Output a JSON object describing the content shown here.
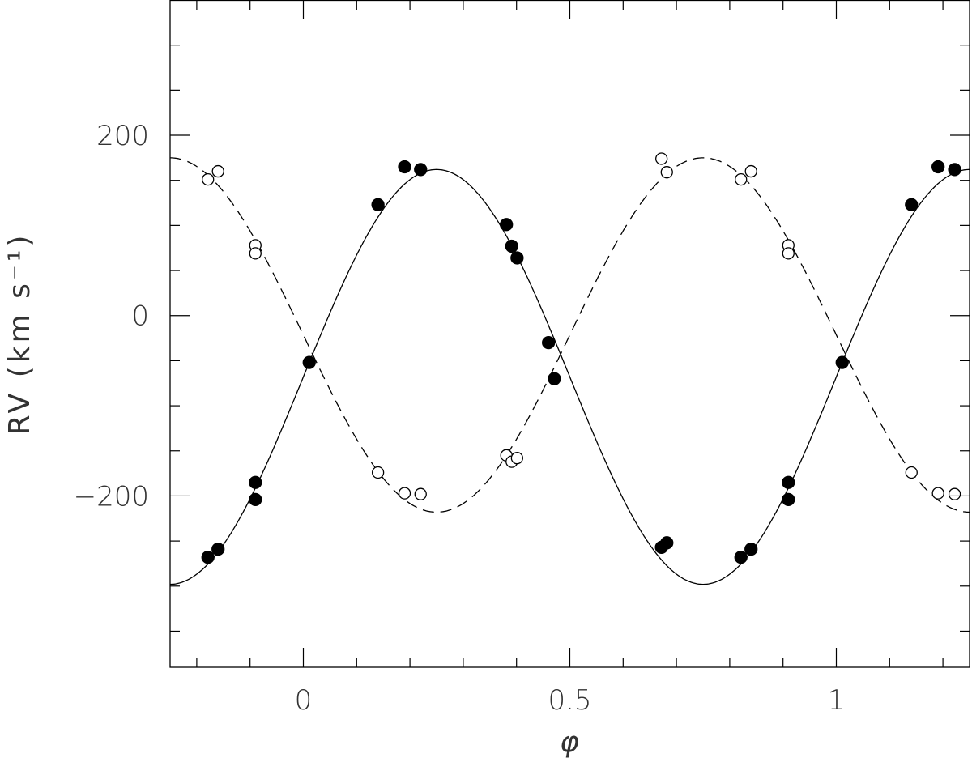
{
  "chart_data": {
    "type": "scatter",
    "xlabel": "φ",
    "ylabel": "RV (km s⁻¹)",
    "xlim": [
      -0.25,
      1.25
    ],
    "ylim": [
      -390,
      350
    ],
    "x_major_ticks": [
      0,
      0.5,
      1
    ],
    "x_tick_labels": [
      "0",
      "0.5",
      "1"
    ],
    "x_minor_step": 0.1,
    "y_major_ticks": [
      200,
      0,
      -200
    ],
    "y_tick_labels": [
      "200",
      "0",
      "−200"
    ],
    "y_minor_step": 50,
    "grid": false,
    "series": [
      {
        "marker": "filled-circle",
        "points": [
          [
            -0.179,
            -268
          ],
          [
            -0.16,
            -259
          ],
          [
            -0.09,
            -185
          ],
          [
            -0.09,
            -204
          ],
          [
            0.011,
            -52
          ],
          [
            0.14,
            123
          ],
          [
            0.19,
            165
          ],
          [
            0.22,
            162
          ],
          [
            0.381,
            101
          ],
          [
            0.391,
            77
          ],
          [
            0.401,
            64
          ],
          [
            0.46,
            -30
          ],
          [
            0.471,
            -70
          ],
          [
            0.672,
            -257
          ],
          [
            0.682,
            -252
          ],
          [
            0.821,
            -268
          ],
          [
            0.84,
            -259
          ],
          [
            0.91,
            -185
          ],
          [
            0.91,
            -204
          ],
          [
            1.011,
            -52
          ],
          [
            1.141,
            123
          ],
          [
            1.191,
            165
          ],
          [
            1.222,
            162
          ]
        ],
        "fit": {
          "style": "solid",
          "gamma": -68,
          "K": 230,
          "sign": 1
        }
      },
      {
        "marker": "open-circle",
        "points": [
          [
            -0.179,
            151
          ],
          [
            -0.16,
            160
          ],
          [
            -0.09,
            78
          ],
          [
            -0.09,
            69
          ],
          [
            0.14,
            -174
          ],
          [
            0.19,
            -197
          ],
          [
            0.22,
            -198
          ],
          [
            0.381,
            -155
          ],
          [
            0.391,
            -162
          ],
          [
            0.401,
            -158
          ],
          [
            0.672,
            174
          ],
          [
            0.682,
            159
          ],
          [
            0.821,
            151
          ],
          [
            0.84,
            160
          ],
          [
            0.91,
            78
          ],
          [
            0.91,
            69
          ],
          [
            1.141,
            -174
          ],
          [
            1.191,
            -197
          ],
          [
            1.222,
            -198
          ]
        ],
        "fit": {
          "style": "dashed",
          "gamma": -21.5,
          "K": 196.5,
          "sign": -1
        }
      }
    ]
  }
}
